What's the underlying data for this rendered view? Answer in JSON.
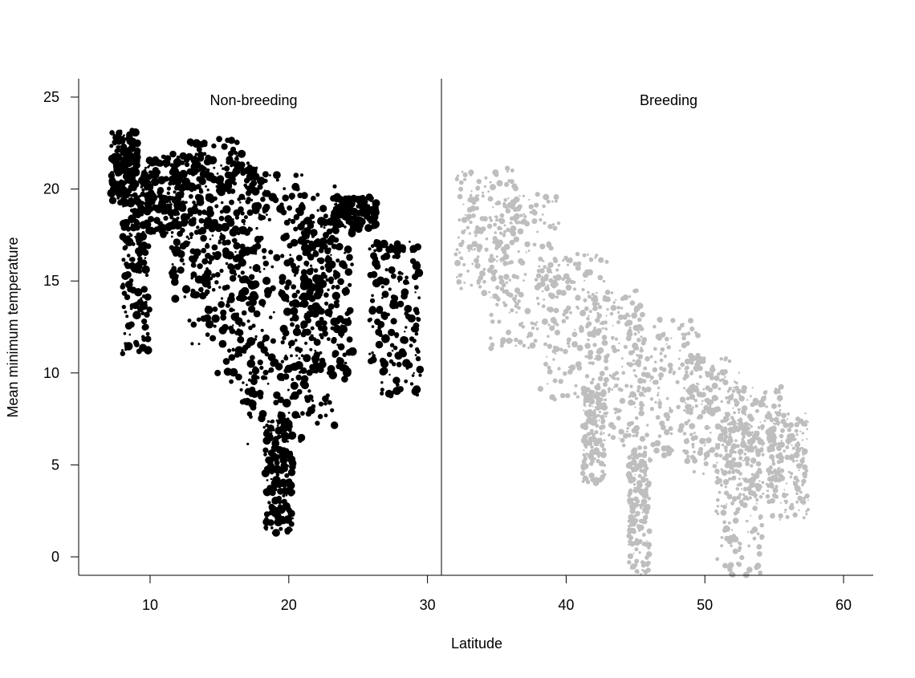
{
  "chart_data": {
    "type": "scatter",
    "xlabel": "Latitude",
    "ylabel": "Mean minimum temperature",
    "grid": false,
    "ylim": [
      -1,
      26
    ],
    "y_ticks": [
      0,
      5,
      10,
      15,
      20,
      25
    ],
    "panels": [
      {
        "label": "Non-breeding",
        "xlim": [
          5,
          31
        ],
        "x_ticks": [
          10,
          20,
          30
        ],
        "point_color": "#000000",
        "clusters": [
          {
            "x": [
              7.2,
              9.1
            ],
            "y": [
              19.2,
              23.2
            ]
          },
          {
            "x": [
              8.0,
              10.0
            ],
            "y": [
              11.0,
              21.0
            ]
          },
          {
            "x": [
              9.5,
              12.5
            ],
            "y": [
              17.5,
              21.8
            ]
          },
          {
            "x": [
              11.5,
              14.5
            ],
            "y": [
              14.0,
              22.0
            ]
          },
          {
            "x": [
              12.8,
              16.8
            ],
            "y": [
              11.5,
              22.8
            ]
          },
          {
            "x": [
              14.5,
              18.5
            ],
            "y": [
              8.0,
              21.5
            ]
          },
          {
            "x": [
              16.5,
              21.5
            ],
            "y": [
              5.0,
              20.8
            ]
          },
          {
            "x": [
              18.3,
              20.3
            ],
            "y": [
              1.2,
              7.5
            ]
          },
          {
            "x": [
              19.5,
              23.5
            ],
            "y": [
              7.0,
              20.3
            ]
          },
          {
            "x": [
              21.0,
              24.6
            ],
            "y": [
              9.5,
              18.5
            ]
          },
          {
            "x": [
              23.2,
              26.3
            ],
            "y": [
              17.8,
              19.6
            ]
          },
          {
            "x": [
              25.8,
              29.5
            ],
            "y": [
              8.6,
              17.2
            ]
          }
        ]
      },
      {
        "label": "Breeding",
        "xlim": [
          31,
          62
        ],
        "x_ticks": [
          40,
          50,
          60
        ],
        "point_color": "#bebebe",
        "clusters": [
          {
            "x": [
              32.0,
              36.5
            ],
            "y": [
              14.0,
              21.2
            ]
          },
          {
            "x": [
              34.5,
              39.5
            ],
            "y": [
              11.0,
              19.8
            ]
          },
          {
            "x": [
              38.0,
              43.0
            ],
            "y": [
              8.5,
              16.5
            ]
          },
          {
            "x": [
              41.5,
              45.5
            ],
            "y": [
              6.0,
              14.5
            ]
          },
          {
            "x": [
              41.2,
              42.8
            ],
            "y": [
              4.0,
              9.0
            ]
          },
          {
            "x": [
              44.5,
              46.0
            ],
            "y": [
              -1.0,
              6.0
            ]
          },
          {
            "x": [
              44.5,
              49.5
            ],
            "y": [
              5.2,
              13.0
            ]
          },
          {
            "x": [
              48.5,
              52.5
            ],
            "y": [
              4.5,
              11.0
            ]
          },
          {
            "x": [
              50.8,
              54.2
            ],
            "y": [
              -1.0,
              7.5
            ]
          },
          {
            "x": [
              51.5,
              55.5
            ],
            "y": [
              3.0,
              9.3
            ]
          },
          {
            "x": [
              54.5,
              57.5
            ],
            "y": [
              2.0,
              8.0
            ]
          }
        ]
      }
    ]
  }
}
